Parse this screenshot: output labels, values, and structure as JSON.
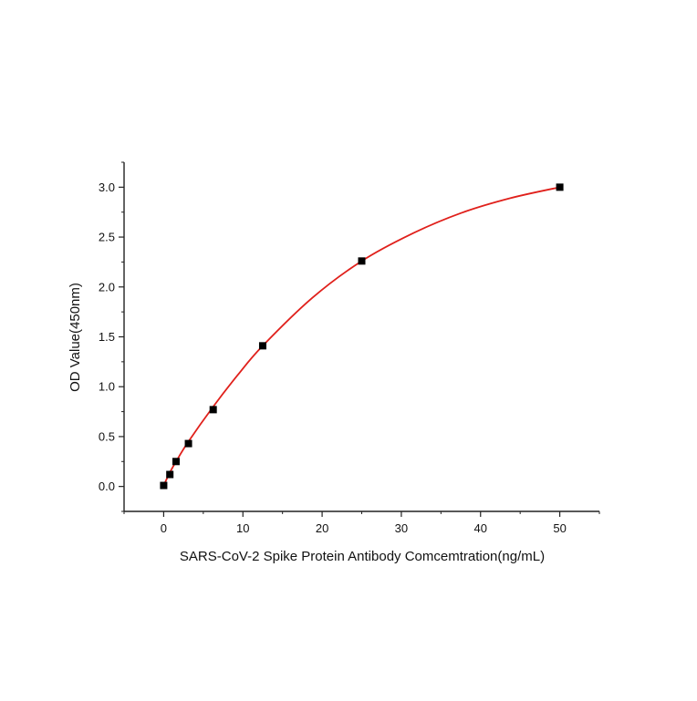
{
  "chart_data": {
    "type": "scatter",
    "title": "",
    "xlabel": "SARS-CoV-2 Spike Protein Antibody Comcemtration(ng/mL)",
    "ylabel": "OD Value(450nm)",
    "xlim": [
      -5,
      55
    ],
    "ylim": [
      -0.25,
      3.25
    ],
    "xticks": [
      0,
      10,
      20,
      30,
      40,
      50
    ],
    "yticks": [
      0.0,
      0.5,
      1.0,
      1.5,
      2.0,
      2.5,
      3.0
    ],
    "xtick_labels": [
      "0",
      "10",
      "20",
      "30",
      "40",
      "50"
    ],
    "ytick_labels": [
      "0.0",
      "0.5",
      "1.0",
      "1.5",
      "2.0",
      "2.5",
      "3.0"
    ],
    "grid": false,
    "series": [
      {
        "kind": "points",
        "marker": "square",
        "color": "#000000",
        "x": [
          0,
          0.78,
          1.56,
          3.125,
          6.25,
          12.5,
          25,
          50
        ],
        "y": [
          0.01,
          0.12,
          0.25,
          0.43,
          0.77,
          1.41,
          2.26,
          3.0
        ]
      },
      {
        "kind": "fit-curve",
        "color": "#e0201b",
        "x": [
          0,
          0.78,
          1.56,
          3.125,
          6.25,
          9.375,
          12.5,
          18.75,
          25,
          31.25,
          37.5,
          43.75,
          50
        ],
        "y": [
          0.01,
          0.14,
          0.25,
          0.45,
          0.8,
          1.12,
          1.41,
          1.89,
          2.26,
          2.53,
          2.74,
          2.89,
          3.0
        ]
      }
    ]
  }
}
